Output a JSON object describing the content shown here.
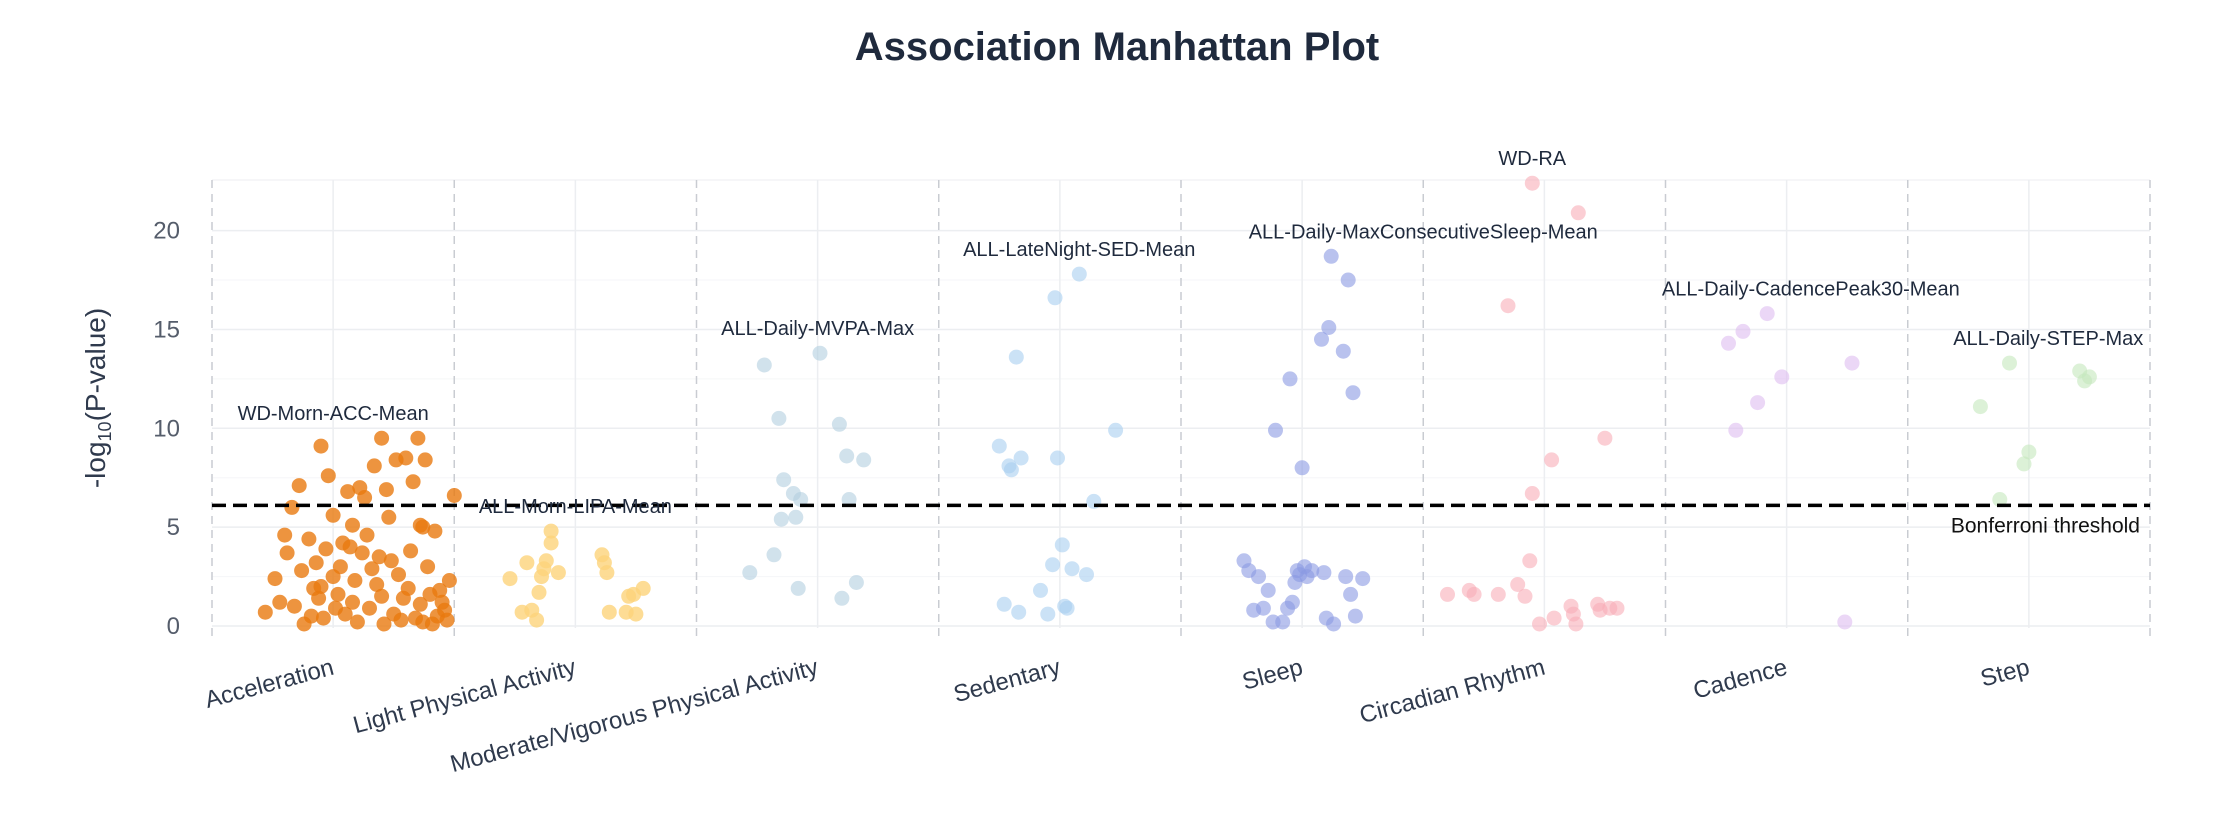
{
  "chart_data": {
    "type": "scatter",
    "title": "Association Manhattan Plot",
    "ylabel_prefix": "-log",
    "ylabel_sub": "10",
    "ylabel_suffix": "(P-value)",
    "ylim": [
      0,
      22.5
    ],
    "yticks": [
      0,
      5,
      10,
      15,
      20
    ],
    "grid": true,
    "threshold": {
      "value": 6.1,
      "label": "Bonferroni threshold"
    },
    "categories": [
      {
        "name": "Acceleration",
        "color": "#E8790F",
        "opacity": 0.8,
        "center": 0.5,
        "points": [
          [
            0.22,
            0.7
          ],
          [
            0.28,
            1.2
          ],
          [
            0.3,
            4.6
          ],
          [
            0.33,
            6.0
          ],
          [
            0.36,
            7.1
          ],
          [
            0.37,
            2.8
          ],
          [
            0.38,
            0.1
          ],
          [
            0.4,
            4.4
          ],
          [
            0.42,
            1.9
          ],
          [
            0.43,
            3.2
          ],
          [
            0.45,
            9.1
          ],
          [
            0.45,
            2.0
          ],
          [
            0.46,
            0.4
          ],
          [
            0.48,
            7.6
          ],
          [
            0.5,
            5.6
          ],
          [
            0.5,
            2.5
          ],
          [
            0.52,
            1.6
          ],
          [
            0.53,
            3.0
          ],
          [
            0.55,
            0.6
          ],
          [
            0.56,
            6.8
          ],
          [
            0.57,
            4.0
          ],
          [
            0.58,
            1.2
          ],
          [
            0.59,
            2.3
          ],
          [
            0.6,
            0.2
          ],
          [
            0.61,
            7.0
          ],
          [
            0.62,
            3.7
          ],
          [
            0.63,
            6.5
          ],
          [
            0.64,
            4.6
          ],
          [
            0.65,
            0.9
          ],
          [
            0.67,
            8.1
          ],
          [
            0.68,
            2.1
          ],
          [
            0.69,
            3.5
          ],
          [
            0.7,
            9.5
          ],
          [
            0.7,
            1.5
          ],
          [
            0.71,
            0.1
          ],
          [
            0.72,
            6.9
          ],
          [
            0.73,
            5.5
          ],
          [
            0.74,
            3.3
          ],
          [
            0.75,
            0.6
          ],
          [
            0.76,
            8.4
          ],
          [
            0.77,
            2.6
          ],
          [
            0.78,
            0.3
          ],
          [
            0.8,
            8.5
          ],
          [
            0.81,
            1.9
          ],
          [
            0.82,
            3.8
          ],
          [
            0.83,
            7.3
          ],
          [
            0.84,
            0.4
          ],
          [
            0.85,
            9.5
          ],
          [
            0.86,
            5.1
          ],
          [
            0.86,
            1.1
          ],
          [
            0.87,
            0.2
          ],
          [
            0.88,
            8.4
          ],
          [
            0.89,
            3.0
          ],
          [
            0.9,
            1.6
          ],
          [
            0.91,
            0.1
          ],
          [
            0.92,
            4.8
          ],
          [
            0.93,
            0.5
          ],
          [
            0.94,
            1.8
          ],
          [
            0.95,
            1.2
          ],
          [
            0.96,
            0.8
          ],
          [
            0.98,
            2.3
          ],
          [
            1.0,
            6.6
          ],
          [
            0.34,
            1.0
          ],
          [
            0.47,
            3.9
          ],
          [
            0.54,
            4.2
          ],
          [
            0.66,
            2.9
          ],
          [
            0.79,
            1.4
          ],
          [
            0.97,
            0.3
          ],
          [
            0.41,
            0.5
          ],
          [
            0.26,
            2.4
          ],
          [
            0.31,
            3.7
          ],
          [
            0.44,
            1.4
          ],
          [
            0.51,
            0.9
          ],
          [
            0.58,
            5.1
          ],
          [
            0.87,
            5.0
          ]
        ]
      },
      {
        "name": "Light Physical Activity",
        "color": "#FDD37A",
        "opacity": 0.8,
        "center": 1.5,
        "points": [
          [
            1.23,
            2.4
          ],
          [
            1.28,
            0.7
          ],
          [
            1.3,
            3.2
          ],
          [
            1.32,
            0.8
          ],
          [
            1.34,
            0.3
          ],
          [
            1.35,
            1.7
          ],
          [
            1.36,
            2.5
          ],
          [
            1.37,
            2.9
          ],
          [
            1.38,
            3.3
          ],
          [
            1.4,
            4.2
          ],
          [
            1.4,
            4.8
          ],
          [
            1.43,
            2.7
          ],
          [
            1.61,
            3.6
          ],
          [
            1.62,
            3.2
          ],
          [
            1.63,
            2.7
          ],
          [
            1.64,
            0.7
          ],
          [
            1.71,
            0.7
          ],
          [
            1.72,
            1.5
          ],
          [
            1.74,
            1.6
          ],
          [
            1.75,
            0.6
          ],
          [
            1.78,
            1.9
          ]
        ]
      },
      {
        "name": "Moderate/Vigorous Physical Activity",
        "color": "#B3CFE0",
        "opacity": 0.6,
        "center": 2.5,
        "points": [
          [
            2.22,
            2.7
          ],
          [
            2.28,
            13.2
          ],
          [
            2.32,
            3.6
          ],
          [
            2.34,
            10.5
          ],
          [
            2.35,
            5.4
          ],
          [
            2.36,
            7.4
          ],
          [
            2.4,
            6.7
          ],
          [
            2.41,
            5.5
          ],
          [
            2.42,
            1.9
          ],
          [
            2.43,
            6.4
          ],
          [
            2.51,
            13.8
          ],
          [
            2.59,
            10.2
          ],
          [
            2.6,
            1.4
          ],
          [
            2.62,
            8.6
          ],
          [
            2.63,
            6.4
          ],
          [
            2.66,
            2.2
          ],
          [
            2.69,
            8.4
          ]
        ]
      },
      {
        "name": "Sedentary",
        "color": "#A9CFF0",
        "opacity": 0.6,
        "center": 3.5,
        "points": [
          [
            3.25,
            9.1
          ],
          [
            3.27,
            1.1
          ],
          [
            3.29,
            8.1
          ],
          [
            3.3,
            7.9
          ],
          [
            3.32,
            13.6
          ],
          [
            3.33,
            0.7
          ],
          [
            3.34,
            8.5
          ],
          [
            3.42,
            1.8
          ],
          [
            3.45,
            0.6
          ],
          [
            3.47,
            3.1
          ],
          [
            3.48,
            16.6
          ],
          [
            3.49,
            8.5
          ],
          [
            3.51,
            4.1
          ],
          [
            3.52,
            1.0
          ],
          [
            3.53,
            0.9
          ],
          [
            3.55,
            2.9
          ],
          [
            3.58,
            17.8
          ],
          [
            3.61,
            2.6
          ],
          [
            3.64,
            6.3
          ],
          [
            3.73,
            9.9
          ]
        ]
      },
      {
        "name": "Sleep",
        "color": "#8A9AE3",
        "opacity": 0.6,
        "center": 4.5,
        "points": [
          [
            4.26,
            3.3
          ],
          [
            4.28,
            2.8
          ],
          [
            4.3,
            0.8
          ],
          [
            4.32,
            2.5
          ],
          [
            4.34,
            0.9
          ],
          [
            4.36,
            1.8
          ],
          [
            4.38,
            0.2
          ],
          [
            4.39,
            9.9
          ],
          [
            4.42,
            0.2
          ],
          [
            4.44,
            0.9
          ],
          [
            4.45,
            12.5
          ],
          [
            4.46,
            1.2
          ],
          [
            4.47,
            2.2
          ],
          [
            4.48,
            2.8
          ],
          [
            4.49,
            2.6
          ],
          [
            4.5,
            8.0
          ],
          [
            4.51,
            3.0
          ],
          [
            4.52,
            2.5
          ],
          [
            4.54,
            2.8
          ],
          [
            4.58,
            14.5
          ],
          [
            4.59,
            2.7
          ],
          [
            4.6,
            0.4
          ],
          [
            4.61,
            15.1
          ],
          [
            4.62,
            18.7
          ],
          [
            4.63,
            0.1
          ],
          [
            4.67,
            13.9
          ],
          [
            4.68,
            2.5
          ],
          [
            4.69,
            17.5
          ],
          [
            4.7,
            1.6
          ],
          [
            4.71,
            11.8
          ],
          [
            4.72,
            0.5
          ],
          [
            4.75,
            2.4
          ]
        ]
      },
      {
        "name": "Circadian Rhythm",
        "color": "#F8AEB8",
        "opacity": 0.6,
        "center": 5.5,
        "points": [
          [
            5.1,
            1.6
          ],
          [
            5.19,
            1.8
          ],
          [
            5.21,
            1.6
          ],
          [
            5.31,
            1.6
          ],
          [
            5.35,
            16.2
          ],
          [
            5.39,
            2.1
          ],
          [
            5.42,
            1.5
          ],
          [
            5.44,
            3.3
          ],
          [
            5.45,
            6.7
          ],
          [
            5.45,
            22.4
          ],
          [
            5.48,
            0.1
          ],
          [
            5.53,
            8.4
          ],
          [
            5.54,
            0.4
          ],
          [
            5.61,
            1.0
          ],
          [
            5.62,
            0.6
          ],
          [
            5.63,
            0.1
          ],
          [
            5.64,
            20.9
          ],
          [
            5.72,
            1.1
          ],
          [
            5.75,
            9.5
          ],
          [
            5.77,
            0.9
          ],
          [
            5.8,
            0.9
          ],
          [
            5.73,
            0.8
          ]
        ]
      },
      {
        "name": "Cadence",
        "color": "#DDBDF0",
        "opacity": 0.6,
        "center": 6.5,
        "points": [
          [
            6.26,
            14.3
          ],
          [
            6.29,
            9.9
          ],
          [
            6.32,
            14.9
          ],
          [
            6.38,
            11.3
          ],
          [
            6.42,
            15.8
          ],
          [
            6.48,
            12.6
          ],
          [
            6.74,
            0.2
          ],
          [
            6.77,
            13.3
          ]
        ]
      },
      {
        "name": "Step",
        "color": "#C5E8BC",
        "opacity": 0.6,
        "center": 7.5,
        "points": [
          [
            7.3,
            11.1
          ],
          [
            7.38,
            6.4
          ],
          [
            7.42,
            13.3
          ],
          [
            7.48,
            8.2
          ],
          [
            7.5,
            8.8
          ],
          [
            7.71,
            12.9
          ],
          [
            7.73,
            12.4
          ],
          [
            7.75,
            12.6
          ]
        ]
      }
    ],
    "annotations": [
      {
        "text": "WD-Morn-ACC-Mean",
        "x": 0.5,
        "y": 9.5
      },
      {
        "text": "ALL-Morn-LIPA-Mean",
        "x": 1.5,
        "y": 4.8
      },
      {
        "text": "ALL-Daily-MVPA-Max",
        "x": 2.5,
        "y": 13.8
      },
      {
        "text": "ALL-LateNight-SED-Mean",
        "x": 3.58,
        "y": 17.8
      },
      {
        "text": "ALL-Daily-MaxConsecutiveSleep-Mean",
        "x": 5.0,
        "y": 18.7
      },
      {
        "text": "WD-RA",
        "x": 5.45,
        "y": 22.4
      },
      {
        "text": "ALL-Daily-CadencePeak30-Mean",
        "x": 6.6,
        "y": 15.8
      },
      {
        "text": "ALL-Daily-STEP-Max",
        "x": 7.58,
        "y": 13.3
      }
    ]
  }
}
